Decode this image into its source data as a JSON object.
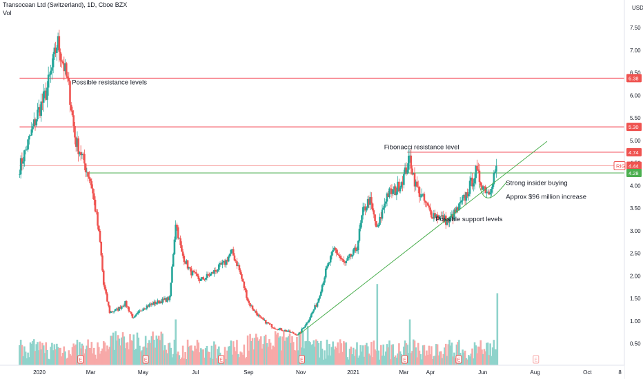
{
  "header": {
    "title": "Transocean Ltd (Switzerland), 1D, Cboe BZX",
    "vol_label": "Vol"
  },
  "chart_data": {
    "type": "candlestick",
    "currency_label": "USD",
    "y_ticks": [
      0.5,
      1.0,
      1.5,
      2.0,
      2.5,
      3.0,
      3.5,
      4.0,
      4.5,
      5.0,
      5.5,
      6.0,
      6.5,
      7.0,
      7.5
    ],
    "y_tick_labels": [
      "0.50",
      "1.00",
      "1.50",
      "2.00",
      "2.50",
      "3.00",
      "3.50",
      "4.00",
      "4.50",
      "5.00",
      "5.50",
      "6.00",
      "6.50",
      "7.00",
      "7.50"
    ],
    "ylim": [
      0.0,
      8.0
    ],
    "x_ticks": [
      "2020",
      "Mar",
      "May",
      "Jul",
      "Sep",
      "Nov",
      "2021",
      "Mar",
      "Apr",
      "Jun",
      "Aug",
      "Oct",
      "8"
    ],
    "x_tick_dates": [
      "2020-01-01",
      "2020-03-01",
      "2020-05-01",
      "2020-07-01",
      "2020-09-01",
      "2020-11-01",
      "2021-01-01",
      "2021-03-01",
      "2021-04-01",
      "2021-06-01",
      "2021-08-01",
      "2021-10-01",
      "2021-11-08"
    ],
    "price_path": [
      {
        "date": "2019-12-09",
        "close": 4.4
      },
      {
        "date": "2019-12-20",
        "close": 5.0
      },
      {
        "date": "2019-12-30",
        "close": 5.6
      },
      {
        "date": "2020-01-08",
        "close": 6.0
      },
      {
        "date": "2020-01-16",
        "close": 6.6
      },
      {
        "date": "2020-01-22",
        "close": 7.2
      },
      {
        "date": "2020-01-29",
        "close": 6.7
      },
      {
        "date": "2020-02-05",
        "close": 6.1
      },
      {
        "date": "2020-02-12",
        "close": 5.0
      },
      {
        "date": "2020-02-19",
        "close": 4.7
      },
      {
        "date": "2020-02-24",
        "close": 4.4
      },
      {
        "date": "2020-03-01",
        "close": 4.1
      },
      {
        "date": "2020-03-07",
        "close": 3.4
      },
      {
        "date": "2020-03-12",
        "close": 2.7
      },
      {
        "date": "2020-03-16",
        "close": 1.8
      },
      {
        "date": "2020-03-23",
        "close": 1.2
      },
      {
        "date": "2020-04-01",
        "close": 1.25
      },
      {
        "date": "2020-04-10",
        "close": 1.4
      },
      {
        "date": "2020-04-20",
        "close": 1.05
      },
      {
        "date": "2020-05-01",
        "close": 1.3
      },
      {
        "date": "2020-05-15",
        "close": 1.4
      },
      {
        "date": "2020-06-01",
        "close": 1.5
      },
      {
        "date": "2020-06-08",
        "close": 3.2
      },
      {
        "date": "2020-06-15",
        "close": 2.5
      },
      {
        "date": "2020-06-25",
        "close": 2.1
      },
      {
        "date": "2020-07-07",
        "close": 1.9
      },
      {
        "date": "2020-07-20",
        "close": 2.05
      },
      {
        "date": "2020-08-05",
        "close": 2.3
      },
      {
        "date": "2020-08-12",
        "close": 2.55
      },
      {
        "date": "2020-08-20",
        "close": 2.2
      },
      {
        "date": "2020-09-01",
        "close": 1.4
      },
      {
        "date": "2020-09-15",
        "close": 1.05
      },
      {
        "date": "2020-10-01",
        "close": 0.85
      },
      {
        "date": "2020-10-15",
        "close": 0.78
      },
      {
        "date": "2020-10-29",
        "close": 0.69
      },
      {
        "date": "2020-11-09",
        "close": 1.0
      },
      {
        "date": "2020-11-20",
        "close": 1.4
      },
      {
        "date": "2020-11-30",
        "close": 2.1
      },
      {
        "date": "2020-12-10",
        "close": 2.6
      },
      {
        "date": "2020-12-22",
        "close": 2.25
      },
      {
        "date": "2021-01-05",
        "close": 2.6
      },
      {
        "date": "2021-01-12",
        "close": 3.4
      },
      {
        "date": "2021-01-20",
        "close": 3.7
      },
      {
        "date": "2021-01-29",
        "close": 3.0
      },
      {
        "date": "2021-02-09",
        "close": 3.8
      },
      {
        "date": "2021-02-20",
        "close": 3.9
      },
      {
        "date": "2021-03-01",
        "close": 4.2
      },
      {
        "date": "2021-03-08",
        "close": 4.6
      },
      {
        "date": "2021-03-15",
        "close": 4.0
      },
      {
        "date": "2021-03-22",
        "close": 3.75
      },
      {
        "date": "2021-04-01",
        "close": 3.4
      },
      {
        "date": "2021-04-12",
        "close": 3.3
      },
      {
        "date": "2021-04-22",
        "close": 3.2
      },
      {
        "date": "2021-05-04",
        "close": 3.5
      },
      {
        "date": "2021-05-13",
        "close": 3.8
      },
      {
        "date": "2021-05-24",
        "close": 4.3
      },
      {
        "date": "2021-06-01",
        "close": 4.0
      },
      {
        "date": "2021-06-08",
        "close": 3.85
      },
      {
        "date": "2021-06-15",
        "close": 4.3
      },
      {
        "date": "2021-06-18",
        "close": 4.44
      }
    ],
    "volume_spikes": [
      {
        "date": "2020-06-08",
        "rel": 0.35
      },
      {
        "date": "2020-11-09",
        "rel": 0.3
      },
      {
        "date": "2021-01-29",
        "rel": 0.62
      },
      {
        "date": "2021-03-08",
        "rel": 0.35
      },
      {
        "date": "2021-06-18",
        "rel": 0.55
      }
    ],
    "price_tags": [
      {
        "value": 6.38,
        "label": "6.38",
        "color": "#ef5350"
      },
      {
        "value": 5.3,
        "label": "5.30",
        "color": "#ef5350"
      },
      {
        "value": 4.74,
        "label": "4.74",
        "color": "#ef5350"
      },
      {
        "value": 4.44,
        "label": "4.44",
        "color": "#ef5350",
        "ticker": "RIG"
      },
      {
        "value": 4.28,
        "label": "4.28",
        "color": "#4caf50"
      }
    ],
    "horizontal_levels": [
      {
        "value": 6.38,
        "color": "#f23645",
        "from": "2019-12-09"
      },
      {
        "value": 5.3,
        "color": "#f23645",
        "from": "2019-12-09"
      },
      {
        "value": 4.74,
        "color": "#f23645",
        "from": "2021-03-05"
      },
      {
        "value": 4.44,
        "color": "#f7a9a8",
        "from": "2019-12-09"
      },
      {
        "value": 4.28,
        "color": "#4caf50",
        "from": "2020-02-26"
      }
    ],
    "trend_lines": [
      {
        "from": {
          "date": "2020-10-29",
          "value": 0.69
        },
        "to": {
          "date": "2021-08-15",
          "value": 4.98
        },
        "color": "#4caf50"
      }
    ],
    "earnings_markers": [
      "2020-02-18",
      "2020-05-04",
      "2020-07-31",
      "2020-11-02",
      "2021-03-02",
      "2021-05-04",
      "2021-08-02"
    ],
    "earnings_marker_label": "E",
    "annotations": [
      {
        "text": "Possible resistance levels",
        "date": "2020-02-08",
        "value": 6.3
      },
      {
        "text": "Fibonacci resistance level",
        "date": "2021-02-06",
        "value": 4.87
      },
      {
        "text": "Strong insider buying",
        "date": "2021-06-28",
        "value": 4.07
      },
      {
        "text": "Approx $96 million increase",
        "date": "2021-06-28",
        "value": 3.77
      },
      {
        "text": "Possible support levels",
        "date": "2021-04-07",
        "value": 3.27
      }
    ],
    "colors": {
      "up": "#26a69a",
      "down": "#ef5350",
      "up_vol": "#8fd3cb",
      "down_vol": "#f7a9a8",
      "axis": "#131722",
      "border": "#e0e3eb"
    }
  }
}
